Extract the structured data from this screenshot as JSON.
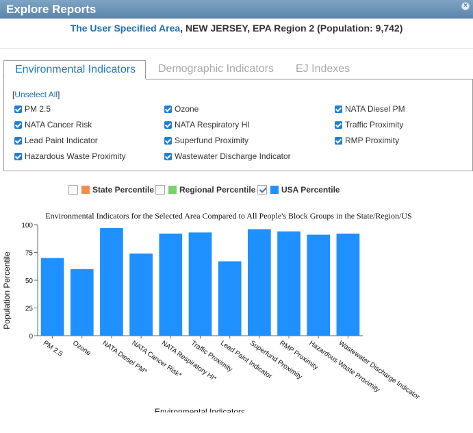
{
  "window": {
    "title": "Explore Reports"
  },
  "header": {
    "area_link": "The User Specified Area",
    "details": ", NEW JERSEY, EPA Region 2 (Population: 9,742)"
  },
  "tabs": [
    {
      "label": "Environmental Indicators",
      "active": true
    },
    {
      "label": "Demographic Indicators",
      "active": false
    },
    {
      "label": "EJ Indexes",
      "active": false
    }
  ],
  "indicators": {
    "unselect_label": "Unselect All",
    "items": [
      {
        "label": "PM 2.5",
        "checked": true
      },
      {
        "label": "Ozone",
        "checked": true
      },
      {
        "label": "NATA Diesel PM",
        "checked": true
      },
      {
        "label": "NATA Cancer Risk",
        "checked": true
      },
      {
        "label": "NATA Respiratory HI",
        "checked": true
      },
      {
        "label": "Traffic Proximity",
        "checked": true
      },
      {
        "label": "Lead Paint Indicator",
        "checked": true
      },
      {
        "label": "Superfund Proximity",
        "checked": true
      },
      {
        "label": "RMP Proximity",
        "checked": true
      },
      {
        "label": "Hazardous Waste Proximity",
        "checked": true
      },
      {
        "label": "Wastewater Discharge Indicator",
        "checked": true
      }
    ]
  },
  "legend": [
    {
      "label": "State Percentile",
      "checked": false,
      "color": "#f28e4c"
    },
    {
      "label": "Regional Percentile",
      "checked": false,
      "color": "#7bd16b"
    },
    {
      "label": "USA Percentile",
      "checked": true,
      "color": "#1e90ff"
    }
  ],
  "chart_data": {
    "type": "bar",
    "title": "Environmental Indicators for the Selected Area Compared to All People's Block Groups in the State/Region/US",
    "xlabel": "Environmental Indicators",
    "ylabel": "Population Percentile",
    "ylim": [
      0,
      100
    ],
    "yticks": [
      0,
      25,
      50,
      75,
      100
    ],
    "categories": [
      "PM 2.5",
      "Ozone",
      "NATA Diesel PM*",
      "NATA Cancer Risk*",
      "NATA Respiratory HI*",
      "Traffic Proximity",
      "Lead Paint Indicator",
      "Superfund Proximity",
      "RMP Proximity",
      "Hazardous Waste Proximity",
      "Wastewater Discharge Indicator"
    ],
    "series": [
      {
        "name": "USA Percentile",
        "color": "#1e90ff",
        "values": [
          70,
          60,
          97,
          74,
          92,
          93,
          67,
          96,
          94,
          91,
          92
        ]
      }
    ]
  }
}
